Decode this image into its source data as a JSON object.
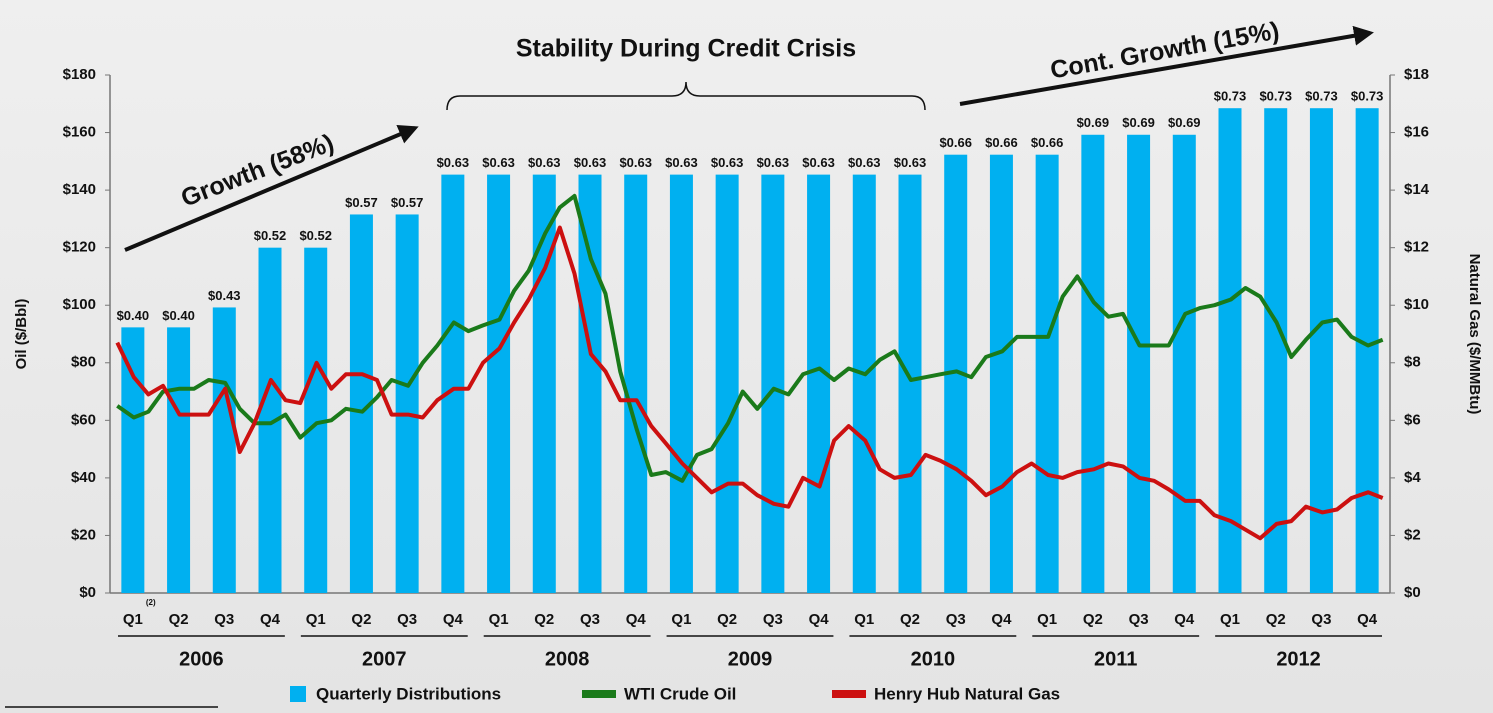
{
  "chart_data": {
    "type": "bar",
    "annotations": [
      "Growth (58%)",
      "Stability During Credit Crisis",
      "Cont. Growth (15%)"
    ],
    "ylabel": "Oil ($/Bbl)",
    "y2label": "Natural  Gas  ($/MMBtu)",
    "categories": [
      "Q1",
      "Q2",
      "Q3",
      "Q4",
      "Q1",
      "Q2",
      "Q3",
      "Q4",
      "Q1",
      "Q2",
      "Q3",
      "Q4",
      "Q1",
      "Q2",
      "Q3",
      "Q4",
      "Q1",
      "Q2",
      "Q3",
      "Q4",
      "Q1",
      "Q2",
      "Q3",
      "Q4",
      "Q1",
      "Q2",
      "Q3",
      "Q4"
    ],
    "footnote_marker": "(2)",
    "years": [
      "2006",
      "2007",
      "2008",
      "2009",
      "2010",
      "2011",
      "2012"
    ],
    "xlim": [
      2006,
      2013
    ],
    "ylim": [
      0,
      180
    ],
    "yticks": [
      {
        "value": 0,
        "label": "$0"
      },
      {
        "value": 20,
        "label": "$20"
      },
      {
        "value": 40,
        "label": "$40"
      },
      {
        "value": 60,
        "label": "$60"
      },
      {
        "value": 80,
        "label": "$80"
      },
      {
        "value": 100,
        "label": "$100"
      },
      {
        "value": 120,
        "label": "$120"
      },
      {
        "value": 140,
        "label": "$140"
      },
      {
        "value": 160,
        "label": "$160"
      },
      {
        "value": 180,
        "label": "$180"
      }
    ],
    "y2lim": [
      0,
      18
    ],
    "y2ticks": [
      {
        "value": 0,
        "label": "$0"
      },
      {
        "value": 2,
        "label": "$2"
      },
      {
        "value": 4,
        "label": "$4"
      },
      {
        "value": 6,
        "label": "$6"
      },
      {
        "value": 8,
        "label": "$8"
      },
      {
        "value": 10,
        "label": "$10"
      },
      {
        "value": 12,
        "label": "$12"
      },
      {
        "value": 14,
        "label": "$14"
      },
      {
        "value": 16,
        "label": "$16"
      },
      {
        "value": 18,
        "label": "$18"
      }
    ],
    "y3lim": [
      0,
      0.78
    ],
    "series": [
      {
        "name": "Quarterly Distributions",
        "type": "bar",
        "axis": "y3",
        "color": "#00b0f0",
        "values": [
          0.4,
          0.4,
          0.43,
          0.52,
          0.52,
          0.57,
          0.57,
          0.63,
          0.63,
          0.63,
          0.63,
          0.63,
          0.63,
          0.63,
          0.63,
          0.63,
          0.63,
          0.63,
          0.66,
          0.66,
          0.66,
          0.69,
          0.69,
          0.69,
          0.73,
          0.73,
          0.73,
          0.73
        ],
        "value_labels": [
          "$0.40",
          "$0.40",
          "$0.43",
          "$0.52",
          "$0.52",
          "$0.57",
          "$0.57",
          "$0.63",
          "$0.63",
          "$0.63",
          "$0.63",
          "$0.63",
          "$0.63",
          "$0.63",
          "$0.63",
          "$0.63",
          "$0.63",
          "$0.63",
          "$0.66",
          "$0.66",
          "$0.66",
          "$0.69",
          "$0.69",
          "$0.69",
          "$0.73",
          "$0.73",
          "$0.73",
          "$0.73"
        ]
      },
      {
        "name": "WTI Crude Oil",
        "type": "line",
        "axis": "y",
        "color": "#1a7a1a",
        "x": [
          2006.04,
          2006.13,
          2006.21,
          2006.29,
          2006.38,
          2006.46,
          2006.54,
          2006.63,
          2006.71,
          2006.79,
          2006.88,
          2006.96,
          2007.04,
          2007.13,
          2007.21,
          2007.29,
          2007.38,
          2007.46,
          2007.54,
          2007.63,
          2007.71,
          2007.79,
          2007.88,
          2007.96,
          2008.04,
          2008.13,
          2008.21,
          2008.29,
          2008.38,
          2008.46,
          2008.54,
          2008.63,
          2008.71,
          2008.79,
          2008.88,
          2008.96,
          2009.04,
          2009.13,
          2009.21,
          2009.29,
          2009.38,
          2009.46,
          2009.54,
          2009.63,
          2009.71,
          2009.79,
          2009.88,
          2009.96,
          2010.04,
          2010.13,
          2010.21,
          2010.29,
          2010.38,
          2010.46,
          2010.54,
          2010.63,
          2010.71,
          2010.79,
          2010.88,
          2010.96,
          2011.04,
          2011.13,
          2011.21,
          2011.29,
          2011.38,
          2011.46,
          2011.54,
          2011.63,
          2011.71,
          2011.79,
          2011.88,
          2011.96,
          2012.04,
          2012.13,
          2012.21,
          2012.29,
          2012.38,
          2012.46,
          2012.54,
          2012.63,
          2012.71,
          2012.79,
          2012.88,
          2012.96
        ],
        "values": [
          65,
          61,
          63,
          70,
          71,
          71,
          74,
          73,
          64,
          59,
          59,
          62,
          54,
          59,
          60,
          64,
          63,
          68,
          74,
          72,
          80,
          86,
          94,
          91,
          93,
          95,
          105,
          112,
          125,
          134,
          138,
          116,
          104,
          77,
          57,
          41,
          42,
          39,
          48,
          50,
          59,
          70,
          64,
          71,
          69,
          76,
          78,
          74,
          78,
          76,
          81,
          84,
          74,
          75,
          76,
          77,
          75,
          82,
          84,
          89,
          89,
          89,
          103,
          110,
          101,
          96,
          97,
          86,
          86,
          86,
          97,
          99,
          100,
          102,
          106,
          103,
          94,
          82,
          88,
          94,
          95,
          89,
          86,
          88
        ]
      },
      {
        "name": "Henry Hub Natural Gas",
        "type": "line",
        "axis": "y2",
        "color": "#cc1010",
        "x": [
          2006.04,
          2006.13,
          2006.21,
          2006.29,
          2006.38,
          2006.46,
          2006.54,
          2006.63,
          2006.71,
          2006.79,
          2006.88,
          2006.96,
          2007.04,
          2007.13,
          2007.21,
          2007.29,
          2007.38,
          2007.46,
          2007.54,
          2007.63,
          2007.71,
          2007.79,
          2007.88,
          2007.96,
          2008.04,
          2008.13,
          2008.21,
          2008.29,
          2008.38,
          2008.46,
          2008.54,
          2008.63,
          2008.71,
          2008.79,
          2008.88,
          2008.96,
          2009.04,
          2009.13,
          2009.21,
          2009.29,
          2009.38,
          2009.46,
          2009.54,
          2009.63,
          2009.71,
          2009.79,
          2009.88,
          2009.96,
          2010.04,
          2010.13,
          2010.21,
          2010.29,
          2010.38,
          2010.46,
          2010.54,
          2010.63,
          2010.71,
          2010.79,
          2010.88,
          2010.96,
          2011.04,
          2011.13,
          2011.21,
          2011.29,
          2011.38,
          2011.46,
          2011.54,
          2011.63,
          2011.71,
          2011.79,
          2011.88,
          2011.96,
          2012.04,
          2012.13,
          2012.21,
          2012.29,
          2012.38,
          2012.46,
          2012.54,
          2012.63,
          2012.71,
          2012.79,
          2012.88,
          2012.96
        ],
        "values": [
          8.7,
          7.5,
          6.9,
          7.2,
          6.2,
          6.2,
          6.2,
          7.1,
          4.9,
          5.9,
          7.4,
          6.7,
          6.6,
          8.0,
          7.1,
          7.6,
          7.6,
          7.4,
          6.2,
          6.2,
          6.1,
          6.7,
          7.1,
          7.1,
          8.0,
          8.5,
          9.4,
          10.2,
          11.3,
          12.7,
          11.1,
          8.3,
          7.7,
          6.7,
          6.7,
          5.8,
          5.2,
          4.5,
          4.0,
          3.5,
          3.8,
          3.8,
          3.4,
          3.1,
          3.0,
          4.0,
          3.7,
          5.3,
          5.8,
          5.3,
          4.3,
          4.0,
          4.1,
          4.8,
          4.6,
          4.3,
          3.9,
          3.4,
          3.7,
          4.2,
          4.5,
          4.1,
          4.0,
          4.2,
          4.3,
          4.5,
          4.4,
          4.0,
          3.9,
          3.6,
          3.2,
          3.2,
          2.7,
          2.5,
          2.2,
          1.9,
          2.4,
          2.5,
          3.0,
          2.8,
          2.9,
          3.3,
          3.5,
          3.3
        ]
      }
    ]
  }
}
